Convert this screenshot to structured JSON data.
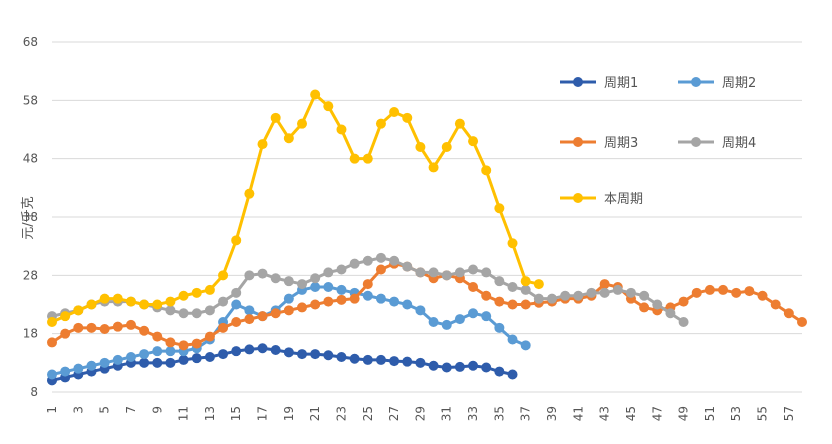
{
  "chart_data": {
    "type": "line",
    "title": "",
    "xlabel": "",
    "ylabel": "元/千克",
    "ylim": [
      8,
      68
    ],
    "yticks": [
      8,
      18,
      28,
      38,
      48,
      58,
      68
    ],
    "xlim": [
      1,
      58
    ],
    "xticks": [
      1,
      3,
      5,
      7,
      9,
      11,
      13,
      15,
      17,
      19,
      21,
      23,
      25,
      27,
      29,
      31,
      33,
      35,
      37,
      39,
      41,
      43,
      45,
      47,
      49,
      51,
      53,
      55,
      57
    ],
    "grid": "horizontal",
    "legend_position": "right",
    "series": [
      {
        "name": "周期1",
        "color": "#2e5cab",
        "x": [
          1,
          2,
          3,
          4,
          5,
          6,
          7,
          8,
          9,
          10,
          11,
          12,
          13,
          14,
          15,
          16,
          17,
          18,
          19,
          20,
          21,
          22,
          23,
          24,
          25,
          26,
          27,
          28,
          29,
          30,
          31,
          32,
          33,
          34,
          35,
          36
        ],
        "values": [
          10,
          10.5,
          11,
          11.5,
          12,
          12.5,
          13,
          13,
          13,
          13,
          13.5,
          13.8,
          14,
          14.5,
          15,
          15.3,
          15.5,
          15.2,
          14.8,
          14.5,
          14.5,
          14.3,
          14,
          13.7,
          13.5,
          13.5,
          13.3,
          13.2,
          13,
          12.5,
          12.2,
          12.3,
          12.5,
          12.2,
          11.5,
          11
        ]
      },
      {
        "name": "周期2",
        "color": "#5a9bd4",
        "x": [
          1,
          2,
          3,
          4,
          5,
          6,
          7,
          8,
          9,
          10,
          11,
          12,
          13,
          14,
          15,
          16,
          17,
          18,
          19,
          20,
          21,
          22,
          23,
          24,
          25,
          26,
          27,
          28,
          29,
          30,
          31,
          32,
          33,
          34,
          35,
          36,
          37
        ],
        "values": [
          11,
          11.5,
          12,
          12.5,
          13,
          13.5,
          14,
          14.5,
          15,
          15,
          15,
          15.5,
          17,
          20,
          23,
          22,
          21,
          22,
          24,
          25.5,
          26,
          26,
          25.5,
          25,
          24.5,
          24,
          23.5,
          23,
          22,
          20,
          19.5,
          20.5,
          21.5,
          21,
          19,
          17,
          16
        ]
      },
      {
        "name": "周期3",
        "color": "#ed7d31",
        "x": [
          1,
          2,
          3,
          4,
          5,
          6,
          7,
          8,
          9,
          10,
          11,
          12,
          13,
          14,
          15,
          16,
          17,
          18,
          19,
          20,
          21,
          22,
          23,
          24,
          25,
          26,
          27,
          28,
          29,
          30,
          31,
          32,
          33,
          34,
          35,
          36,
          37,
          38,
          39,
          40,
          41,
          42,
          43,
          44,
          45,
          46,
          47,
          48,
          49,
          50,
          51,
          52,
          53,
          54,
          55,
          56,
          57,
          58
        ],
        "values": [
          16.5,
          18,
          19,
          19,
          18.8,
          19.2,
          19.5,
          18.5,
          17.5,
          16.5,
          16,
          16.3,
          17.5,
          19,
          20,
          20.5,
          21,
          21.5,
          22,
          22.5,
          23,
          23.5,
          23.8,
          24,
          26.5,
          29,
          30,
          29.5,
          28.5,
          27.5,
          28,
          27.5,
          26,
          24.5,
          23.5,
          23,
          23,
          23.3,
          23.5,
          24,
          24,
          24.5,
          26.5,
          26,
          24,
          22.5,
          22,
          22.5,
          23.5,
          25,
          25.5,
          25.5,
          25,
          25.3,
          24.5,
          23,
          21.5,
          20
        ]
      },
      {
        "name": "周期4",
        "color": "#a5a5a5",
        "x": [
          1,
          2,
          3,
          4,
          5,
          6,
          7,
          8,
          9,
          10,
          11,
          12,
          13,
          14,
          15,
          16,
          17,
          18,
          19,
          20,
          21,
          22,
          23,
          24,
          25,
          26,
          27,
          28,
          29,
          30,
          31,
          32,
          33,
          34,
          35,
          36,
          37,
          38,
          39,
          40,
          41,
          42,
          43,
          44,
          45,
          46,
          47,
          48,
          49
        ],
        "values": [
          21,
          21.5,
          22,
          23,
          23.5,
          23.5,
          23.5,
          23,
          22.5,
          22,
          21.5,
          21.5,
          22,
          23.5,
          25,
          28,
          28.3,
          27.5,
          27,
          26.5,
          27.5,
          28.5,
          29,
          30,
          30.5,
          31,
          30.5,
          29.5,
          28.5,
          28.5,
          28,
          28.5,
          29,
          28.5,
          27,
          26,
          25.5,
          24,
          24,
          24.5,
          24.5,
          25,
          25,
          25.5,
          25,
          24.5,
          23,
          21.5,
          20
        ]
      },
      {
        "name": "本周期",
        "color": "#ffc000",
        "x": [
          1,
          2,
          3,
          4,
          5,
          6,
          7,
          8,
          9,
          10,
          11,
          12,
          13,
          14,
          15,
          16,
          17,
          18,
          19,
          20,
          21,
          22,
          23,
          24,
          25,
          26,
          27,
          28,
          29,
          30,
          31,
          32,
          33,
          34,
          35,
          36,
          37,
          38
        ],
        "values": [
          20,
          21,
          22,
          23,
          24,
          24,
          23.5,
          23,
          23,
          23.5,
          24.5,
          25,
          25.5,
          28,
          34,
          42,
          50.5,
          55,
          51.5,
          54,
          59,
          57,
          53,
          48,
          48,
          54,
          56,
          55,
          50,
          46.5,
          50,
          54,
          51,
          46,
          39.5,
          33.5,
          27,
          26.5
        ]
      }
    ]
  }
}
